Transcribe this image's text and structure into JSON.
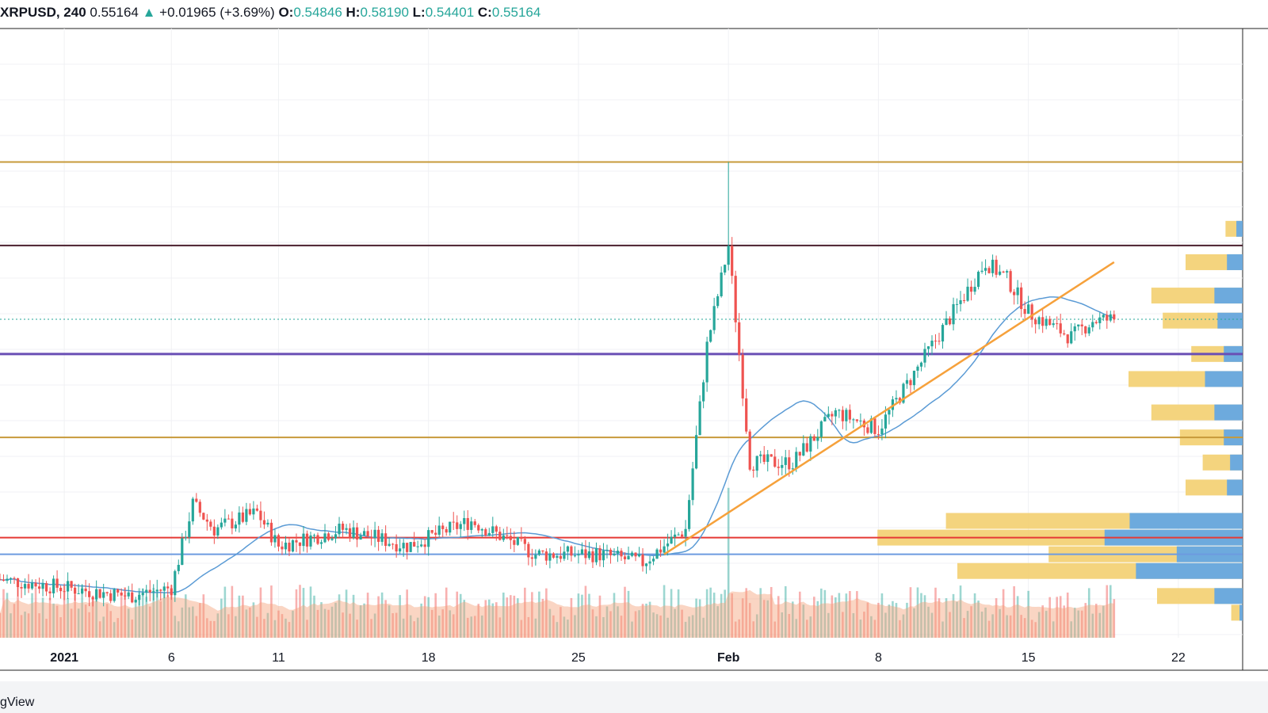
{
  "legend": {
    "symbol": "XRPUSD, 240",
    "last": "0.55164",
    "arrow": "▲",
    "change": "+0.01965 (+3.69%)",
    "o_label": "O:",
    "o_value": "0.54846",
    "h_label": "H:",
    "h_value": "0.58190",
    "l_label": "L:",
    "l_value": "0.54401",
    "c_label": "C:",
    "c_value": "0.55164"
  },
  "footer": {
    "brand_text": "gView"
  },
  "colors": {
    "up": "#26a69a",
    "down": "#ef5350",
    "ma": "#5b9bd5",
    "gold_line": "#c79a3a",
    "dark_line": "#4a1f2e",
    "purple_line": "#6a4fb5",
    "red_line": "#e53935",
    "blue_line": "#6d9be0",
    "trend": "#f6a13b",
    "profile_blue": "#5ea5e8",
    "profile_gold": "#f3cf70",
    "last_price": "#26a69a"
  },
  "chart_data": {
    "type": "candlestick",
    "x_ticks": [
      "2021",
      "6",
      "11",
      "18",
      "25",
      "Feb",
      "8",
      "15",
      "22"
    ],
    "y_range": [
      0.17,
      0.9
    ],
    "x_range_days": [
      "2020-12-29",
      "2021-02-25"
    ],
    "price_levels": [
      {
        "name": "resistance-top",
        "value": 0.74,
        "color": "gold_line"
      },
      {
        "name": "resistance-dark",
        "value": 0.64,
        "color": "dark_line"
      },
      {
        "name": "support-purple",
        "value": 0.51,
        "color": "purple_line"
      },
      {
        "name": "support-gold",
        "value": 0.41,
        "color": "gold_line"
      },
      {
        "name": "support-red",
        "value": 0.29,
        "color": "red_line"
      },
      {
        "name": "support-blue",
        "value": 0.27,
        "color": "blue_line"
      }
    ],
    "last_price": 0.55164,
    "trendline": {
      "from": [
        "2021-01-29",
        0.27
      ],
      "to": [
        "2021-02-19",
        0.62
      ]
    },
    "key_points": [
      [
        "2020-12-29",
        0.24
      ],
      [
        "2021-01-01",
        0.23
      ],
      [
        "2021-01-04",
        0.22
      ],
      [
        "2021-01-06",
        0.23
      ],
      [
        "2021-01-07",
        0.33
      ],
      [
        "2021-01-08",
        0.3
      ],
      [
        "2021-01-10",
        0.32
      ],
      [
        "2021-01-11",
        0.28
      ],
      [
        "2021-01-14",
        0.3
      ],
      [
        "2021-01-17",
        0.28
      ],
      [
        "2021-01-20",
        0.31
      ],
      [
        "2021-01-23",
        0.27
      ],
      [
        "2021-01-26",
        0.27
      ],
      [
        "2021-01-28",
        0.26
      ],
      [
        "2021-01-30",
        0.3
      ],
      [
        "2021-01-31",
        0.52
      ],
      [
        "2021-02-01",
        0.64
      ],
      [
        "2021-02-02",
        0.38
      ],
      [
        "2021-02-04",
        0.38
      ],
      [
        "2021-02-06",
        0.44
      ],
      [
        "2021-02-08",
        0.42
      ],
      [
        "2021-02-10",
        0.5
      ],
      [
        "2021-02-13",
        0.62
      ],
      [
        "2021-02-14",
        0.6
      ],
      [
        "2021-02-15",
        0.56
      ],
      [
        "2021-02-17",
        0.53
      ],
      [
        "2021-02-18",
        0.55
      ],
      [
        "2021-02-19",
        0.55164
      ]
    ],
    "volume_profile": [
      {
        "price": 0.66,
        "buy": 0.2,
        "sell": 0.1
      },
      {
        "price": 0.62,
        "buy": 0.5,
        "sell": 0.5
      },
      {
        "price": 0.58,
        "buy": 0.9,
        "sell": 0.7
      },
      {
        "price": 0.55,
        "buy": 0.8,
        "sell": 0.6
      },
      {
        "price": 0.51,
        "buy": 0.6,
        "sell": 0.3
      },
      {
        "price": 0.48,
        "buy": 1.2,
        "sell": 0.8
      },
      {
        "price": 0.44,
        "buy": 0.9,
        "sell": 0.7
      },
      {
        "price": 0.41,
        "buy": 0.6,
        "sell": 0.5
      },
      {
        "price": 0.38,
        "buy": 0.4,
        "sell": 0.3
      },
      {
        "price": 0.35,
        "buy": 0.5,
        "sell": 0.5
      },
      {
        "price": 0.31,
        "buy": 3.6,
        "sell": 1.6
      },
      {
        "price": 0.29,
        "buy": 4.4,
        "sell": 2.0
      },
      {
        "price": 0.27,
        "buy": 2.1,
        "sell": 1.3
      },
      {
        "price": 0.25,
        "buy": 3.4,
        "sell": 1.6
      },
      {
        "price": 0.22,
        "buy": 0.9,
        "sell": 0.6
      },
      {
        "price": 0.2,
        "buy": 0.1,
        "sell": 0.1
      }
    ]
  }
}
